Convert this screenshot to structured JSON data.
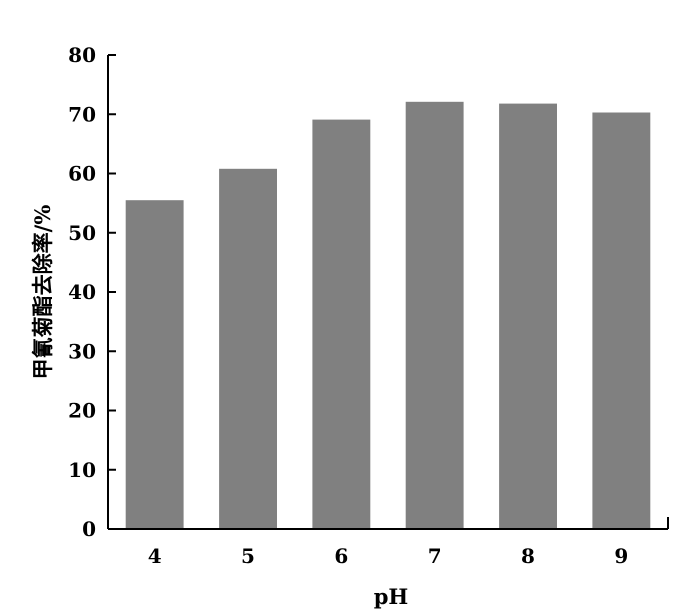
{
  "chart_data": {
    "type": "bar",
    "categories": [
      "4",
      "5",
      "6",
      "7",
      "8",
      "9"
    ],
    "values": [
      55.5,
      60.8,
      69.1,
      72.1,
      71.8,
      70.3
    ],
    "xlabel": "pH",
    "ylabel": "甲氰菊酯去除率/%",
    "ylim": [
      0,
      80
    ],
    "yticks": [
      "0",
      "10",
      "20",
      "30",
      "40",
      "50",
      "60",
      "70",
      "80"
    ],
    "bar_color": "#808080",
    "grid": false,
    "legend": "none"
  }
}
